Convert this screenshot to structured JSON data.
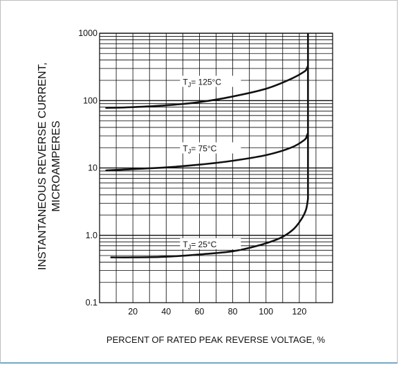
{
  "chart_data": {
    "type": "line",
    "xlabel": "PERCENT OF RATED PEAK REVERSE VOLTAGE, %",
    "ylabel_line1": "INSTANTANEOUS REVERSE CURRENT,",
    "ylabel_line2": "MICROAMPERES",
    "y_scale": "log",
    "ylim": [
      0.1,
      1000
    ],
    "xlim": [
      0,
      140
    ],
    "grid": true,
    "x_ticks": [
      {
        "value": 20,
        "label": "20"
      },
      {
        "value": 40,
        "label": "40"
      },
      {
        "value": 60,
        "label": "60"
      },
      {
        "value": 80,
        "label": "80"
      },
      {
        "value": 100,
        "label": "100"
      },
      {
        "value": 120,
        "label": "120"
      }
    ],
    "y_ticks": [
      {
        "value": 0.1,
        "label": "0.1"
      },
      {
        "value": 1,
        "label": "1.0"
      },
      {
        "value": 10,
        "label": "10"
      },
      {
        "value": 100,
        "label": "100"
      },
      {
        "value": 1000,
        "label": "1000"
      }
    ],
    "series": [
      {
        "label_prefix": "T",
        "label_sub": "J",
        "label_suffix": "= 125°C",
        "label_at": [
          50,
          180
        ],
        "points": [
          [
            4,
            78
          ],
          [
            20,
            80
          ],
          [
            40,
            85
          ],
          [
            60,
            95
          ],
          [
            80,
            115
          ],
          [
            100,
            150
          ],
          [
            115,
            210
          ],
          [
            123,
            270
          ],
          [
            124.5,
            300
          ]
        ]
      },
      {
        "label_prefix": "T",
        "label_sub": "J",
        "label_suffix": "= 75°C",
        "label_at": [
          50,
          18.5
        ],
        "points": [
          [
            4,
            9.2
          ],
          [
            20,
            9.6
          ],
          [
            40,
            10.2
          ],
          [
            60,
            11.2
          ],
          [
            80,
            12.8
          ],
          [
            100,
            15.5
          ],
          [
            115,
            20
          ],
          [
            123,
            26
          ],
          [
            124.5,
            30
          ]
        ]
      },
      {
        "label_prefix": "T",
        "label_sub": "J",
        "label_suffix": "= 25°C",
        "label_at": [
          50,
          0.7
        ],
        "points": [
          [
            7,
            0.47
          ],
          [
            20,
            0.47
          ],
          [
            40,
            0.48
          ],
          [
            60,
            0.52
          ],
          [
            80,
            0.58
          ],
          [
            95,
            0.7
          ],
          [
            108,
            0.9
          ],
          [
            116,
            1.2
          ],
          [
            121,
            1.7
          ],
          [
            124,
            2.4
          ],
          [
            125.2,
            3.5
          ]
        ]
      }
    ],
    "vertical_limit": {
      "x": 125.2,
      "from": 3.5,
      "to": 1000
    }
  }
}
